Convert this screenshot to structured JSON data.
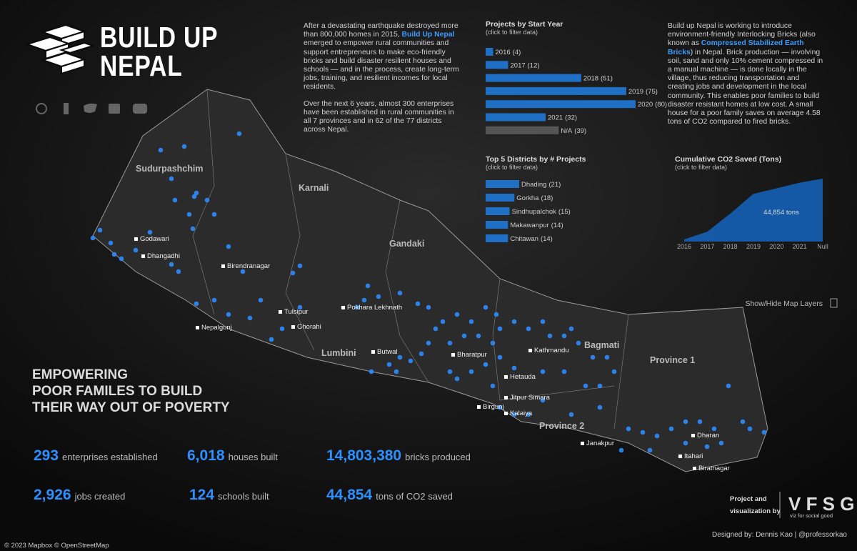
{
  "header": {
    "title_line1": "BUILD UP",
    "title_line2": "NEPAL"
  },
  "intro": {
    "paragraphs": [
      [
        {
          "text": "After a devastating earthquake destroyed more than 800,000 homes in 2015, "
        },
        {
          "text": "Build Up Nepal",
          "highlight": true
        },
        {
          "text": " emerged to empower rural communities and support entrepreneurs to make eco-friendly bricks and build disaster resilient houses and schools — and in the process, create long-term jobs, training, and resilient incomes for local residents."
        }
      ],
      [
        {
          "text": "Over the next 6 years, almost 300 enterprises have been established in rural communities in all 7 provinces and in 62 of the 77 districts across Nepal."
        }
      ]
    ]
  },
  "about": {
    "paragraphs": [
      [
        {
          "text": "Build up Nepal is working to introduce environment-friendly Interlocking Bricks (also known as "
        },
        {
          "text": "Compressed Stabilized Earth Bricks",
          "highlight": true
        },
        {
          "text": ") in Nepal. Brick production — involving soil, sand and only 10% cement compressed in a manual machine — is done locally in the village, thus reducing transportation and creating jobs and development in the local community. This enables poor families to build disaster resistant homes at low cost. A small house for a poor family saves on average 4.58 tons of CO2 compared to fired bricks."
        }
      ]
    ]
  },
  "chart_data": [
    {
      "type": "bar",
      "orientation": "horizontal",
      "title": "Projects by Start Year",
      "subtitle": "(click to filter data)",
      "categories": [
        "2016",
        "2017",
        "2018",
        "2019",
        "2020",
        "2021",
        "N/A"
      ],
      "values": [
        4,
        12,
        51,
        75,
        80,
        32,
        39
      ],
      "value_labels": [
        "(4)",
        "(12)",
        "(51)",
        "(75)",
        "(80)",
        "(32)",
        "(39)"
      ],
      "colors": [
        "#1f6fc4",
        "#1f6fc4",
        "#1f6fc4",
        "#1f6fc4",
        "#1f6fc4",
        "#1f6fc4",
        "#555555"
      ]
    },
    {
      "type": "bar",
      "orientation": "horizontal",
      "title": "Top 5 Districts by # Projects",
      "subtitle": "(click to filter data)",
      "categories": [
        "Dhading",
        "Gorkha",
        "Sindhupalchok",
        "Makawanpur",
        "Chitawan"
      ],
      "values": [
        21,
        18,
        15,
        14,
        14
      ],
      "value_labels": [
        "(21)",
        "(18)",
        "(15)",
        "(14)",
        "(14)"
      ],
      "color": "#1f6fc4"
    },
    {
      "type": "area",
      "title": "Cumulative CO2 Saved (Tons)",
      "subtitle": "(click to filter data)",
      "categories": [
        "2016",
        "2017",
        "2018",
        "2019",
        "2020",
        "2021",
        "Null"
      ],
      "values": [
        1500,
        7000,
        20000,
        34000,
        38000,
        42000,
        44854
      ],
      "annotation": "44,854 tons",
      "color": "#1565c0"
    }
  ],
  "map": {
    "regions": [
      "Sudurpashchim",
      "Karnali",
      "Gandaki",
      "Lumbini",
      "Bagmati",
      "Province 1",
      "Province 2"
    ],
    "cities": [
      "Godawari",
      "Dhangadhi",
      "Birendranagar",
      "Nepalgunj",
      "Tulsipur",
      "Ghorahi",
      "Pokhara Lekhnath",
      "Butwal",
      "Bharatpur",
      "Kathmandu",
      "Hetauda",
      "Jitpur Simara",
      "Birgunj",
      "Kalaiya",
      "Janakpur",
      "Dharan",
      "Itahari",
      "Biratnagar"
    ],
    "layers_toggle": "Show/Hide Map Layers",
    "attribution": "© 2023 Mapbox © OpenStreetMap"
  },
  "headline": [
    "EMPOWERING",
    "POOR FAMILES TO BUILD",
    "THEIR WAY OUT OF POVERTY"
  ],
  "stats": [
    {
      "value": "293",
      "label": "enterprises established"
    },
    {
      "value": "6,018",
      "label": "houses built"
    },
    {
      "value": "14,803,380",
      "label": "bricks produced"
    },
    {
      "value": "2,926",
      "label": "jobs created"
    },
    {
      "value": "124",
      "label": "schools built"
    },
    {
      "value": "44,854",
      "label": "tons of CO2 saved"
    }
  ],
  "credits": {
    "project_by": [
      "Project and",
      "visualization by"
    ],
    "org": "viz for social good",
    "designer": "Designed by: Dennis Kao | @professorkao"
  }
}
